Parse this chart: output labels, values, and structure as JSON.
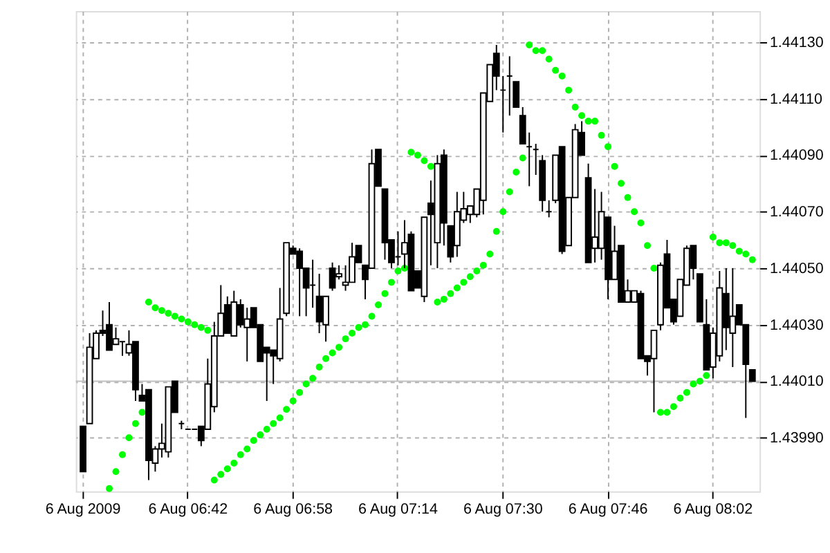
{
  "chart_data": {
    "type": "candlestick",
    "categories": [
      "6 Aug 2009",
      null,
      null,
      null,
      null,
      null,
      null,
      null,
      null,
      null,
      null,
      null,
      null,
      null,
      null,
      null,
      "6 Aug 06:42",
      null,
      null,
      null,
      null,
      null,
      null,
      null,
      null,
      null,
      null,
      null,
      null,
      null,
      null,
      null,
      "6 Aug 06:58",
      null,
      null,
      null,
      null,
      null,
      null,
      null,
      null,
      null,
      null,
      null,
      null,
      null,
      null,
      null,
      "6 Aug 07:14",
      null,
      null,
      null,
      null,
      null,
      null,
      null,
      null,
      null,
      null,
      null,
      null,
      null,
      null,
      null,
      "6 Aug 07:30",
      null,
      null,
      null,
      null,
      null,
      null,
      null,
      null,
      null,
      null,
      null,
      null,
      null,
      null,
      null,
      "6 Aug 07:46",
      null,
      null,
      null,
      null,
      null,
      null,
      null,
      null,
      null,
      null,
      null,
      null,
      null,
      null,
      null,
      "6 Aug 08:02",
      null,
      null,
      null,
      null,
      null,
      null
    ],
    "ohlc": [
      [
        1.43994,
        1.43994,
        1.43978,
        1.43978
      ],
      [
        1.43995,
        1.44027,
        1.43995,
        1.44022
      ],
      [
        1.44018,
        1.44028,
        1.44018,
        1.44027
      ],
      [
        1.44028,
        1.44035,
        1.44026,
        1.44027
      ],
      [
        1.4403,
        1.44038,
        1.44021,
        1.44021
      ],
      [
        1.44023,
        1.44029,
        1.44023,
        1.44025
      ],
      [
        1.44024,
        1.44024,
        1.44019,
        1.44024
      ],
      [
        1.4402,
        1.44028,
        1.44019,
        1.44023
      ],
      [
        1.44024,
        1.44024,
        1.44003,
        1.44007
      ],
      [
        1.44005,
        1.44009,
        1.44003,
        1.44003
      ],
      [
        1.44007,
        1.44007,
        1.43975,
        1.43982
      ],
      [
        1.43981,
        1.43987,
        1.43978,
        1.43986
      ],
      [
        1.43986,
        1.43995,
        1.43983,
        1.43988
      ],
      [
        1.43985,
        1.44008,
        1.43983,
        1.44008
      ],
      [
        1.4401,
        1.4401,
        1.43999,
        1.43999
      ],
      [
        1.43995,
        1.43996,
        1.43993,
        1.43995
      ],
      [
        1.43993,
        1.43993,
        1.43993,
        1.43993
      ],
      [
        1.43993,
        1.43993,
        1.43993,
        1.43993
      ],
      [
        1.43994,
        1.43994,
        1.43987,
        1.43989
      ],
      [
        1.43993,
        1.44018,
        1.43993,
        1.44009
      ],
      [
        1.44001,
        1.44031,
        1.43999,
        1.44026
      ],
      [
        1.44026,
        1.44044,
        1.44026,
        1.44034
      ],
      [
        1.44037,
        1.4404,
        1.44027,
        1.44027
      ],
      [
        1.44026,
        1.44042,
        1.44026,
        1.44038
      ],
      [
        1.44037,
        1.44039,
        1.44029,
        1.4403
      ],
      [
        1.44029,
        1.44036,
        1.44017,
        1.44032
      ],
      [
        1.44036,
        1.44036,
        1.44029,
        1.44029
      ],
      [
        1.4403,
        1.4403,
        1.44017,
        1.44017
      ],
      [
        1.44022,
        1.44022,
        1.44003,
        1.4402
      ],
      [
        1.44021,
        1.44021,
        1.44009,
        1.44019
      ],
      [
        1.44018,
        1.44043,
        1.44017,
        1.44032
      ],
      [
        1.44034,
        1.44059,
        1.44033,
        1.44059
      ],
      [
        1.44057,
        1.44058,
        1.44055,
        1.44055
      ],
      [
        1.44056,
        1.44057,
        1.44033,
        1.4405
      ],
      [
        1.4405,
        1.4405,
        1.44033,
        1.44043
      ],
      [
        1.44044,
        1.44053,
        1.44036,
        1.44044
      ],
      [
        1.4404,
        1.44048,
        1.44027,
        1.44031
      ],
      [
        1.4403,
        1.4404,
        1.44024,
        1.4404
      ],
      [
        1.4405,
        1.44052,
        1.44042,
        1.44043
      ],
      [
        1.44047,
        1.44051,
        1.44046,
        1.44048
      ],
      [
        1.44044,
        1.44051,
        1.44042,
        1.44045
      ],
      [
        1.44045,
        1.44059,
        1.44045,
        1.44054
      ],
      [
        1.44058,
        1.44058,
        1.44052,
        1.44052
      ],
      [
        1.44051,
        1.44051,
        1.44039,
        1.44046
      ],
      [
        1.4405,
        1.44092,
        1.4405,
        1.44087
      ],
      [
        1.44092,
        1.44092,
        1.44079,
        1.44079
      ],
      [
        1.44078,
        1.44078,
        1.44053,
        1.44059
      ],
      [
        1.4406,
        1.4406,
        1.4405,
        1.44052
      ],
      [
        1.44054,
        1.44063,
        1.44051,
        1.44054
      ],
      [
        1.44055,
        1.44067,
        1.4405,
        1.44059
      ],
      [
        1.44062,
        1.44063,
        1.44042,
        1.44042
      ],
      [
        1.44049,
        1.44049,
        1.44043,
        1.44043
      ],
      [
        1.4404,
        1.44068,
        1.44038,
        1.44068
      ],
      [
        1.44073,
        1.44081,
        1.44051,
        1.44069
      ],
      [
        1.44059,
        1.4409,
        1.4405,
        1.44087
      ],
      [
        1.4409,
        1.44092,
        1.44058,
        1.44066
      ],
      [
        1.44065,
        1.44065,
        1.44052,
        1.44054
      ],
      [
        1.44058,
        1.44077,
        1.44054,
        1.4407
      ],
      [
        1.44067,
        1.44077,
        1.44066,
        1.44071
      ],
      [
        1.44069,
        1.44072,
        1.44066,
        1.44072
      ],
      [
        1.44069,
        1.44078,
        1.44068,
        1.44078
      ],
      [
        1.44074,
        1.44112,
        1.44069,
        1.44112
      ],
      [
        1.44109,
        1.44122,
        1.44109,
        1.44122
      ],
      [
        1.44126,
        1.44129,
        1.44113,
        1.44118
      ],
      [
        1.44113,
        1.44118,
        1.44098,
        1.44113
      ],
      [
        1.44118,
        1.44125,
        1.44104,
        1.44118
      ],
      [
        1.44116,
        1.44116,
        1.44107,
        1.44107
      ],
      [
        1.44104,
        1.44107,
        1.44094,
        1.44094
      ],
      [
        1.44093,
        1.44098,
        1.44079,
        1.44093
      ],
      [
        1.44092,
        1.44094,
        1.44083,
        1.44092
      ],
      [
        1.44088,
        1.4409,
        1.4407,
        1.44074
      ],
      [
        1.4407,
        1.44074,
        1.44068,
        1.4407
      ],
      [
        1.44074,
        1.4409,
        1.44073,
        1.4409
      ],
      [
        1.44093,
        1.44093,
        1.44055,
        1.44056
      ],
      [
        1.44058,
        1.44075,
        1.44058,
        1.44075
      ],
      [
        1.44075,
        1.44101,
        1.44075,
        1.44099
      ],
      [
        1.44098,
        1.44102,
        1.4409,
        1.4409
      ],
      [
        1.44082,
        1.44087,
        1.44052,
        1.44052
      ],
      [
        1.44057,
        1.44078,
        1.44052,
        1.44061
      ],
      [
        1.44057,
        1.44077,
        1.44053,
        1.4407
      ],
      [
        1.44068,
        1.44068,
        1.44039,
        1.44046
      ],
      [
        1.44046,
        1.44065,
        1.44046,
        1.44056
      ],
      [
        1.44058,
        1.44058,
        1.44038,
        1.44038
      ],
      [
        1.44038,
        1.44046,
        1.44038,
        1.44042
      ],
      [
        1.44038,
        1.44042,
        1.44038,
        1.44042
      ],
      [
        1.44041,
        1.44042,
        1.44018,
        1.44018
      ],
      [
        1.44019,
        1.44019,
        1.44012,
        1.44017
      ],
      [
        1.44018,
        1.44028,
        1.43999,
        1.44028
      ],
      [
        1.4403,
        1.44052,
        1.44028,
        1.44051
      ],
      [
        1.44055,
        1.4406,
        1.44036,
        1.44036
      ],
      [
        1.44039,
        1.44039,
        1.4403,
        1.44031
      ],
      [
        1.44033,
        1.44046,
        1.44033,
        1.44046
      ],
      [
        1.44044,
        1.44058,
        1.44044,
        1.44057
      ],
      [
        1.44058,
        1.44058,
        1.44046,
        1.4405
      ],
      [
        1.44048,
        1.44048,
        1.44031,
        1.44031
      ],
      [
        1.4403,
        1.44039,
        1.44014,
        1.44014
      ],
      [
        1.44015,
        1.44029,
        1.44011,
        1.44027
      ],
      [
        1.44019,
        1.44049,
        1.44017,
        1.44043
      ],
      [
        1.44041,
        1.4405,
        1.44021,
        1.44029
      ],
      [
        1.44027,
        1.4405,
        1.44015,
        1.44033
      ],
      [
        1.44037,
        1.44037,
        1.4403,
        1.4403
      ],
      [
        1.4403,
        1.4403,
        1.43997,
        1.44016
      ],
      [
        1.44014,
        1.44014,
        1.4401,
        1.4401
      ]
    ],
    "series": [
      {
        "type": "scatter",
        "color": "#00ff00",
        "values": [
          null,
          null,
          null,
          null,
          1.43972,
          1.43978,
          1.43984,
          1.4399,
          1.43995,
          1.43999,
          1.44038,
          1.44036,
          1.44035,
          1.44034,
          1.44033,
          1.44032,
          1.44031,
          1.4403,
          1.44029,
          1.44028,
          1.43975,
          1.43977,
          1.43979,
          1.43981,
          1.43984,
          1.43986,
          1.43989,
          1.43991,
          1.43993,
          1.43995,
          1.43997,
          1.44,
          1.44003,
          1.44006,
          1.44009,
          1.44011,
          1.44015,
          1.44018,
          1.4402,
          1.44022,
          1.44025,
          1.44027,
          1.44029,
          1.4403,
          1.44033,
          1.44037,
          1.44041,
          1.44045,
          1.44049,
          1.4405,
          1.44091,
          1.4409,
          1.44088,
          1.44086,
          1.44038,
          1.44039,
          1.44041,
          1.44043,
          1.44045,
          1.44047,
          1.44049,
          1.44051,
          1.44055,
          1.44063,
          1.4407,
          1.44077,
          1.44084,
          1.44089,
          1.44129,
          1.44127,
          1.44127,
          1.44124,
          1.4412,
          1.44118,
          1.44113,
          1.44107,
          1.44104,
          1.44102,
          1.44102,
          1.44097,
          1.44093,
          1.44086,
          1.4408,
          1.44075,
          1.4407,
          1.44066,
          1.44058,
          1.4405,
          1.43999,
          1.43999,
          1.44001,
          1.44004,
          1.44006,
          1.44009,
          1.4401,
          1.44012,
          1.44061,
          1.44059,
          1.44059,
          1.44058,
          1.44056,
          1.44055,
          1.44053
        ]
      }
    ],
    "ylim": [
      1.43971,
      1.44141
    ],
    "yticks": [
      {
        "value": 1.4399,
        "label": "1.43990"
      },
      {
        "value": 1.4401,
        "label": "1.44010"
      },
      {
        "value": 1.4403,
        "label": "1.44030"
      },
      {
        "value": 1.4405,
        "label": "1.44050"
      },
      {
        "value": 1.4407,
        "label": "1.44070"
      },
      {
        "value": 1.4409,
        "label": "1.44090"
      },
      {
        "value": 1.4411,
        "label": "1.44110"
      },
      {
        "value": 1.4413,
        "label": "1.44130"
      }
    ],
    "ref_lines": [
      {
        "axis": "y",
        "value": 1.4401,
        "color": "#c0c0c0"
      }
    ],
    "grid": true
  }
}
